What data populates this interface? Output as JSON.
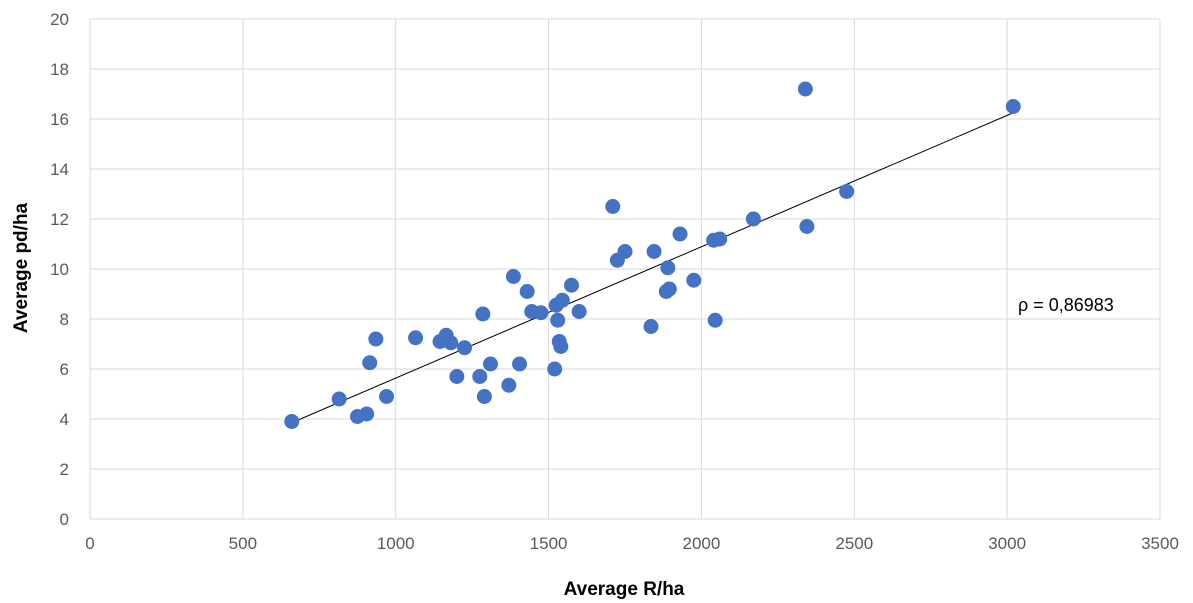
{
  "chart_data": {
    "type": "scatter",
    "xlabel": "Average R/ha",
    "ylabel": "Average pd/ha",
    "xlim": [
      0,
      3500
    ],
    "ylim": [
      0,
      20
    ],
    "xticks": [
      "0",
      "500",
      "1000",
      "1500",
      "2000",
      "2500",
      "3000",
      "3500"
    ],
    "yticks": [
      "0",
      "2",
      "4",
      "6",
      "8",
      "10",
      "12",
      "14",
      "16",
      "18",
      "20"
    ],
    "grid": "vertical and horizontal major gridlines",
    "legend": "none",
    "marker_color": "#4472c4",
    "annotation": "ρ = 0,86983",
    "trendline": {
      "type": "linear",
      "x": [
        660,
        3020
      ],
      "y": [
        3.85,
        16.25
      ]
    },
    "points": [
      [
        660,
        3.9
      ],
      [
        815,
        4.8
      ],
      [
        875,
        4.1
      ],
      [
        905,
        4.2
      ],
      [
        915,
        6.25
      ],
      [
        935,
        7.2
      ],
      [
        970,
        4.9
      ],
      [
        1065,
        7.25
      ],
      [
        1145,
        7.1
      ],
      [
        1165,
        7.35
      ],
      [
        1180,
        7.05
      ],
      [
        1200,
        5.7
      ],
      [
        1225,
        6.85
      ],
      [
        1275,
        5.7
      ],
      [
        1285,
        8.2
      ],
      [
        1290,
        4.9
      ],
      [
        1310,
        6.2
      ],
      [
        1370,
        5.35
      ],
      [
        1385,
        9.7
      ],
      [
        1405,
        6.2
      ],
      [
        1430,
        9.1
      ],
      [
        1445,
        8.3
      ],
      [
        1475,
        8.25
      ],
      [
        1520,
        6.0
      ],
      [
        1525,
        8.55
      ],
      [
        1530,
        7.95
      ],
      [
        1535,
        7.1
      ],
      [
        1540,
        6.9
      ],
      [
        1545,
        8.75
      ],
      [
        1575,
        9.35
      ],
      [
        1600,
        8.3
      ],
      [
        1710,
        12.5
      ],
      [
        1725,
        10.35
      ],
      [
        1750,
        10.7
      ],
      [
        1835,
        7.7
      ],
      [
        1845,
        10.7
      ],
      [
        1885,
        9.1
      ],
      [
        1890,
        10.05
      ],
      [
        1895,
        9.2
      ],
      [
        1930,
        11.4
      ],
      [
        1975,
        9.55
      ],
      [
        2040,
        11.15
      ],
      [
        2045,
        7.95
      ],
      [
        2060,
        11.2
      ],
      [
        2170,
        12.0
      ],
      [
        2340,
        17.2
      ],
      [
        2345,
        11.7
      ],
      [
        2475,
        13.1
      ],
      [
        3020,
        16.5
      ]
    ]
  }
}
